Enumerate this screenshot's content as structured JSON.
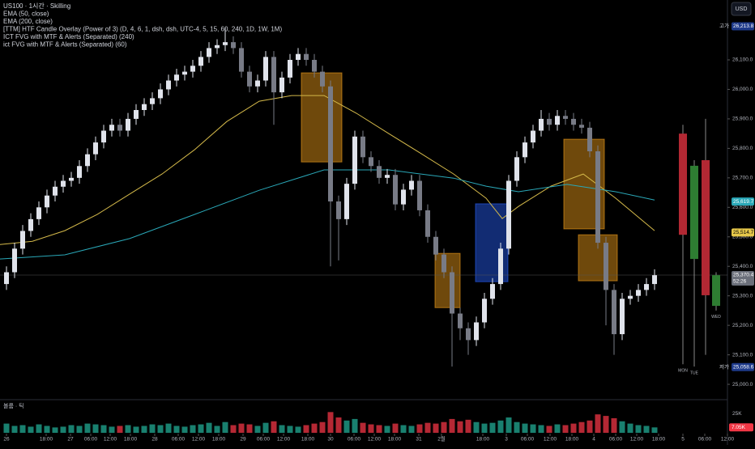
{
  "chart_data": {
    "type": "candlestick",
    "header": [
      "US100 · 1시간 · Skilling",
      "EMA (50, close)",
      "EMA (200, close)",
      "[TTM] HTF Candle Overlay (Power of 3) (D, 4, 6, 1, dsh, dsh, UTC-4, 5, 15, 60, 240, 1D, 1W, 1M)",
      "ICT FVG with MTF & Alerts (Separated) (240)",
      "ict FVG with MTF & Alerts (Separated) (60)"
    ],
    "currency": "USD",
    "up_color": "#e0e3eb",
    "down_color": "#787b86",
    "x": [
      0,
      1,
      2,
      3,
      4,
      5,
      6,
      7,
      8,
      9,
      10,
      11,
      12,
      13,
      14,
      15,
      16,
      17,
      18,
      19,
      20,
      21,
      22,
      23,
      24,
      25,
      26,
      27,
      28,
      29,
      30,
      31,
      32,
      33,
      34,
      35,
      36,
      37,
      38,
      39,
      40,
      41,
      42,
      43,
      44,
      45,
      46,
      47,
      48,
      49,
      50,
      51,
      52,
      53,
      54,
      55,
      56,
      57,
      58,
      59,
      60,
      61,
      62,
      63,
      64,
      65,
      66,
      67,
      68,
      69,
      70,
      71,
      72,
      73,
      74,
      75,
      76,
      77,
      78,
      79,
      80
    ],
    "open": [
      25340,
      25380,
      25460,
      25520,
      25560,
      25600,
      25640,
      25670,
      25690,
      25700,
      25740,
      25780,
      25820,
      25860,
      25880,
      25860,
      25900,
      25930,
      25950,
      25970,
      26000,
      26030,
      26050,
      26060,
      26080,
      26110,
      26140,
      26150,
      26160,
      26140,
      26060,
      26010,
      26030,
      26110,
      25990,
      26040,
      26100,
      26120,
      26100,
      26060,
      26010,
      25620,
      25560,
      25680,
      25840,
      25770,
      25740,
      25700,
      25710,
      25610,
      25660,
      25690,
      25590,
      25500,
      25440,
      25380,
      25240,
      25190,
      25150,
      25210,
      25290,
      25340,
      25460,
      25690,
      25770,
      25820,
      25860,
      25900,
      25880,
      25910,
      25900,
      25880,
      25870,
      25790,
      25480,
      25320,
      25170,
      25290,
      25300,
      25320,
      25340
    ],
    "high": [
      25400,
      25480,
      25540,
      25580,
      25620,
      25660,
      25690,
      25710,
      25720,
      25760,
      25800,
      25840,
      25880,
      25900,
      25900,
      25920,
      25950,
      25970,
      25990,
      26020,
      26050,
      26070,
      26080,
      26100,
      26130,
      26160,
      26170,
      26210,
      26180,
      26160,
      26080,
      26050,
      26130,
      26130,
      26060,
      26120,
      26140,
      26140,
      26120,
      26080,
      26030,
      25640,
      25700,
      25860,
      25860,
      25790,
      25760,
      25730,
      25730,
      25680,
      25710,
      25710,
      25610,
      25520,
      25460,
      25400,
      25260,
      25210,
      25230,
      25310,
      25360,
      25480,
      25710,
      25790,
      25840,
      25880,
      25930,
      25920,
      25930,
      25930,
      25920,
      25900,
      25890,
      25810,
      25500,
      25340,
      25310,
      25320,
      25340,
      25360,
      25390
    ],
    "low": [
      25320,
      25360,
      25440,
      25500,
      25540,
      25580,
      25620,
      25650,
      25670,
      25680,
      25720,
      25760,
      25800,
      25840,
      25840,
      25840,
      25880,
      25910,
      25930,
      25950,
      25980,
      26010,
      26030,
      26040,
      26060,
      26090,
      26120,
      26130,
      26120,
      26040,
      25990,
      25990,
      26010,
      25880,
      25970,
      26020,
      26080,
      26080,
      26040,
      25990,
      25400,
      25420,
      25540,
      25660,
      25750,
      25720,
      25680,
      25680,
      25590,
      25590,
      25640,
      25570,
      25480,
      25420,
      25360,
      25060,
      25150,
      25100,
      25130,
      25190,
      25270,
      25320,
      25440,
      25670,
      25750,
      25800,
      25840,
      25860,
      25860,
      25880,
      25860,
      25850,
      25770,
      25460,
      25200,
      25100,
      25150,
      25270,
      25280,
      25300,
      25320
    ],
    "close": [
      25380,
      25460,
      25520,
      25560,
      25600,
      25640,
      25670,
      25690,
      25700,
      25740,
      25780,
      25820,
      25860,
      25880,
      25860,
      25900,
      25930,
      25950,
      25970,
      26000,
      26030,
      26050,
      26060,
      26080,
      26110,
      26140,
      26150,
      26160,
      26140,
      26060,
      26010,
      26030,
      26110,
      25990,
      26040,
      26100,
      26120,
      26100,
      26060,
      26010,
      25620,
      25560,
      25680,
      25840,
      25770,
      25740,
      25700,
      25710,
      25610,
      25660,
      25690,
      25590,
      25500,
      25440,
      25380,
      25240,
      25190,
      25150,
      25210,
      25290,
      25340,
      25460,
      25690,
      25770,
      25820,
      25860,
      25900,
      25880,
      25910,
      25900,
      25880,
      25870,
      25790,
      25480,
      25320,
      25170,
      25290,
      25300,
      25320,
      25340,
      25370
    ],
    "volume": [
      12,
      9,
      10,
      8,
      11,
      9,
      7,
      8,
      10,
      9,
      12,
      11,
      10,
      8,
      9,
      10,
      8,
      9,
      11,
      10,
      12,
      9,
      8,
      10,
      11,
      13,
      9,
      14,
      10,
      12,
      11,
      9,
      13,
      15,
      10,
      9,
      8,
      10,
      12,
      14,
      27,
      20,
      16,
      18,
      13,
      11,
      10,
      9,
      12,
      10,
      9,
      11,
      13,
      12,
      14,
      18,
      15,
      17,
      14,
      12,
      13,
      16,
      20,
      14,
      12,
      11,
      10,
      9,
      11,
      10,
      12,
      14,
      16,
      24,
      22,
      19,
      15,
      12,
      10,
      9,
      7.05
    ],
    "volume_up_color": "#22ab94",
    "volume_down_color": "#f23645",
    "volume_title": "볼륨 · 틱",
    "vlim": [
      0,
      40
    ],
    "vticks": [
      {
        "value": 25,
        "label": "25K"
      }
    ],
    "volume_tag": {
      "value": 7.05,
      "label": "7.05K"
    },
    "lines": [
      {
        "name": "EMA (50, close)",
        "color": "#d4b94a",
        "x": [
          -0.8,
          3.2,
          7.2,
          11.2,
          15.2,
          19.2,
          23.2,
          27.2,
          31.2,
          35.2,
          39.2,
          43.2,
          47.2,
          51.2,
          55.2,
          59.2,
          61.2,
          63.2,
          67.2,
          71.2,
          75.2,
          80
        ],
        "values": [
          25474,
          25485,
          25521,
          25576,
          25645,
          25713,
          25795,
          25891,
          25960,
          25979,
          25979,
          25919,
          25850,
          25782,
          25713,
          25631,
          25562,
          25603,
          25672,
          25713,
          25631,
          25521
        ]
      },
      {
        "name": "EMA (200, close)",
        "color": "#2aa8b8",
        "x": [
          -0.8,
          7.2,
          15.2,
          23.2,
          31.2,
          39.2,
          47.2,
          55.2,
          59.2,
          63.2,
          69.2,
          75.2,
          80
        ],
        "values": [
          25425,
          25439,
          25494,
          25576,
          25658,
          25727,
          25727,
          25699,
          25672,
          25653,
          25678,
          25653,
          25625
        ]
      }
    ],
    "zones": [
      {
        "x0": 36.4,
        "x1": 41.4,
        "top": 26056,
        "bottom": 25754,
        "color": "#f7a21b"
      },
      {
        "x0": 52.9,
        "x1": 56,
        "top": 25444,
        "bottom": 25260,
        "color": "#f7a21b"
      },
      {
        "x0": 57.9,
        "x1": 61.9,
        "top": 25612,
        "bottom": 25348,
        "color": "#2962ff"
      },
      {
        "x0": 68.8,
        "x1": 73.8,
        "top": 25831,
        "bottom": 25527,
        "color": "#f7a21b"
      },
      {
        "x0": 70.6,
        "x1": 75.4,
        "top": 25507,
        "bottom": 25351,
        "color": "#f7a21b"
      }
    ],
    "htf": {
      "x": [
        83.5,
        84.9,
        86.3,
        87.6
      ],
      "labels": [
        "MON",
        "TUE",
        "",
        "WED"
      ],
      "open": [
        25850,
        25425,
        25760,
        25266
      ],
      "high": [
        25880,
        25760,
        25900,
        25380
      ],
      "low": [
        25068,
        25060,
        25100,
        25250
      ],
      "close": [
        25507,
        25741,
        25302,
        25370
      ],
      "up_color": "#2e7d32",
      "down_color": "#b22833"
    },
    "xlim": [
      -0.8,
      89
    ],
    "ylim": [
      24959,
      26303
    ],
    "yticks": [
      {
        "value": 25000,
        "label": "25,000.0"
      },
      {
        "value": 25100,
        "label": "25,100.0"
      },
      {
        "value": 25200,
        "label": "25,200.0"
      },
      {
        "value": 25300,
        "label": "25,300.0"
      },
      {
        "value": 25400,
        "label": "25,400.0"
      },
      {
        "value": 25500,
        "label": "25,500.0"
      },
      {
        "value": 25600,
        "label": "25,600.0"
      },
      {
        "value": 25700,
        "label": "25,700.0"
      },
      {
        "value": 25800,
        "label": "25,800.0"
      },
      {
        "value": 25900,
        "label": "25,900.0"
      },
      {
        "value": 26000,
        "label": "26,000.0"
      },
      {
        "value": 26100,
        "label": "26,100.0"
      }
    ],
    "xticks": [
      {
        "value": 0,
        "label": "26"
      },
      {
        "value": 4.9,
        "label": "18:00"
      },
      {
        "value": 7.9,
        "label": "27"
      },
      {
        "value": 10.4,
        "label": "06:00"
      },
      {
        "value": 12.8,
        "label": "12:00"
      },
      {
        "value": 15.3,
        "label": "18:00"
      },
      {
        "value": 18.3,
        "label": "28"
      },
      {
        "value": 21.2,
        "label": "06:00"
      },
      {
        "value": 23.7,
        "label": "12:00"
      },
      {
        "value": 26.2,
        "label": "18:00"
      },
      {
        "value": 29.2,
        "label": "29"
      },
      {
        "value": 31.7,
        "label": "06:00"
      },
      {
        "value": 34.2,
        "label": "12:00"
      },
      {
        "value": 37.2,
        "label": "18:00"
      },
      {
        "value": 40,
        "label": "30"
      },
      {
        "value": 42.9,
        "label": "06:00"
      },
      {
        "value": 45.4,
        "label": "12:00"
      },
      {
        "value": 47.9,
        "label": "18:00"
      },
      {
        "value": 50.9,
        "label": "31"
      },
      {
        "value": 53.7,
        "label": "2월"
      },
      {
        "value": 58.8,
        "label": "18:00"
      },
      {
        "value": 61.7,
        "label": "3"
      },
      {
        "value": 64.3,
        "label": "06:00"
      },
      {
        "value": 67.1,
        "label": "12:00"
      },
      {
        "value": 69.8,
        "label": "18:00"
      },
      {
        "value": 72.5,
        "label": "4"
      },
      {
        "value": 75.2,
        "label": "06:00"
      },
      {
        "value": 77.8,
        "label": "12:00"
      },
      {
        "value": 80.5,
        "label": "18:00"
      },
      {
        "value": 83.5,
        "label": "5"
      },
      {
        "value": 86.2,
        "label": "06:00"
      },
      {
        "value": 89,
        "label": "12:00"
      }
    ],
    "price_tags": [
      {
        "name": "고가",
        "value": 26213.8,
        "label": "26,213.8",
        "color": "#1e3a8a"
      },
      {
        "value": 25619.7,
        "label": "25,619.7",
        "color": "#2aa8b8"
      },
      {
        "value": 25514.7,
        "label": "25,514.7",
        "color": "#e6c84a"
      },
      {
        "value": 25370.4,
        "label": "25,370.4",
        "sub": "52:26",
        "color": "#6b6f7a"
      },
      {
        "name": "저가",
        "value": 25058.6,
        "label": "25,058.6",
        "color": "#1e3a8a"
      }
    ]
  }
}
